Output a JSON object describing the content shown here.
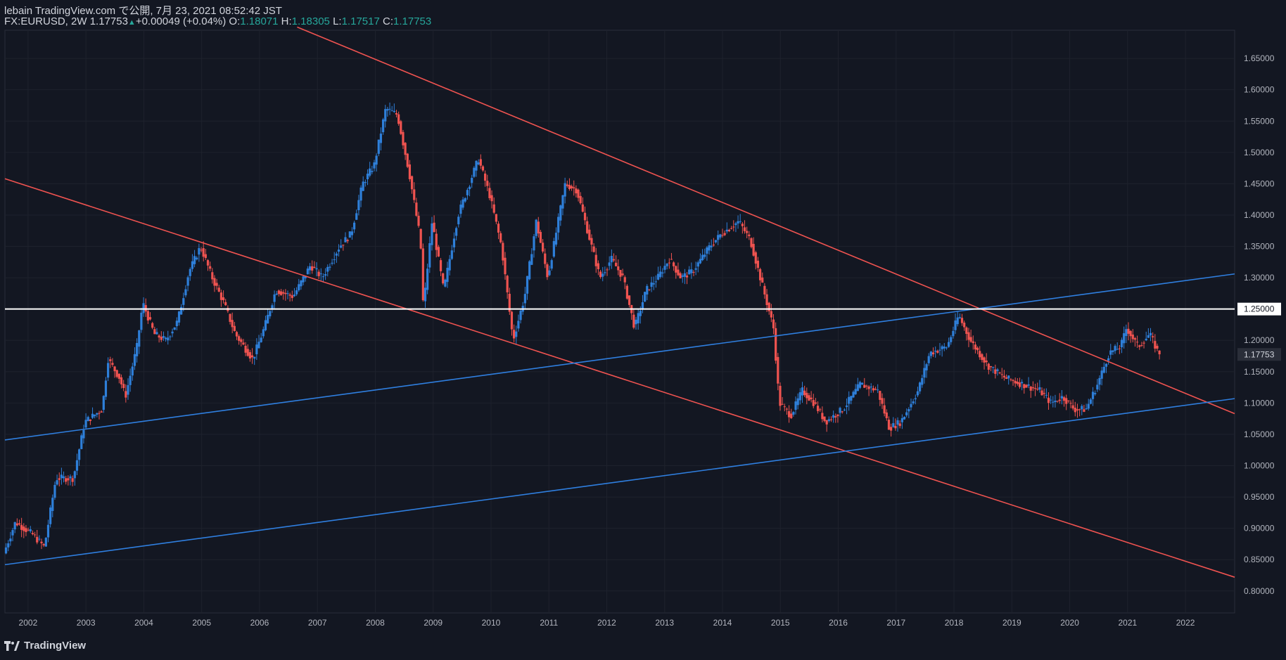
{
  "header": {
    "published": "lebain TradingView.com で公開, 7月 23, 2021 08:52:42 JST",
    "symbol": "FX:EURUSD, 2W",
    "last": "1.17753",
    "change": "+0.00049 (+0.04%)",
    "o_label": "O:",
    "o_value": "1.18071",
    "h_label": "H:",
    "h_value": "1.18305",
    "l_label": "L:",
    "l_value": "1.17517",
    "c_label": "C:",
    "c_value": "1.17753"
  },
  "brand": {
    "name": "TradingView",
    "logo_icon": "tradingview-logo-icon"
  },
  "colors": {
    "background": "#131722",
    "up": "#2e7fd9",
    "down": "#ef5350",
    "trend_red": "#ef5350",
    "trend_blue": "#2f7fe0",
    "hline": "#ffffff",
    "axis_text": "#b2b5be",
    "grid": "#1e222d"
  },
  "chart_data": {
    "type": "candlestick",
    "symbol": "FX:EURUSD",
    "interval": "2W",
    "x_range": [
      2001.6,
      2022.85
    ],
    "y_range": [
      0.765,
      1.695
    ],
    "x_tick_labels": [
      "2002",
      "2003",
      "2004",
      "2005",
      "2006",
      "2007",
      "2008",
      "2009",
      "2010",
      "2011",
      "2012",
      "2013",
      "2014",
      "2015",
      "2016",
      "2017",
      "2018",
      "2019",
      "2020",
      "2021",
      "2022"
    ],
    "x_ticks": [
      2002,
      2003,
      2004,
      2005,
      2006,
      2007,
      2008,
      2009,
      2010,
      2011,
      2012,
      2013,
      2014,
      2015,
      2016,
      2017,
      2018,
      2019,
      2020,
      2021,
      2022
    ],
    "y_tick_labels": [
      "0.80000",
      "0.85000",
      "0.90000",
      "0.95000",
      "1.00000",
      "1.05000",
      "1.10000",
      "1.15000",
      "1.20000",
      "1.25000",
      "1.30000",
      "1.35000",
      "1.40000",
      "1.45000",
      "1.50000",
      "1.55000",
      "1.60000",
      "1.65000"
    ],
    "y_ticks": [
      0.8,
      0.85,
      0.9,
      0.95,
      1.0,
      1.05,
      1.1,
      1.15,
      1.2,
      1.25,
      1.3,
      1.35,
      1.4,
      1.45,
      1.5,
      1.55,
      1.6,
      1.65
    ],
    "price_path": [
      [
        2001.6,
        0.86
      ],
      [
        2001.8,
        0.91
      ],
      [
        2002.1,
        0.89
      ],
      [
        2002.3,
        0.87
      ],
      [
        2002.5,
        0.98
      ],
      [
        2002.8,
        0.98
      ],
      [
        2003.0,
        1.07
      ],
      [
        2003.3,
        1.09
      ],
      [
        2003.4,
        1.17
      ],
      [
        2003.6,
        1.14
      ],
      [
        2003.7,
        1.11
      ],
      [
        2003.9,
        1.19
      ],
      [
        2004.0,
        1.26
      ],
      [
        2004.2,
        1.21
      ],
      [
        2004.4,
        1.2
      ],
      [
        2004.6,
        1.23
      ],
      [
        2004.8,
        1.31
      ],
      [
        2005.0,
        1.35
      ],
      [
        2005.2,
        1.3
      ],
      [
        2005.4,
        1.26
      ],
      [
        2005.6,
        1.21
      ],
      [
        2005.9,
        1.17
      ],
      [
        2006.1,
        1.22
      ],
      [
        2006.3,
        1.28
      ],
      [
        2006.6,
        1.27
      ],
      [
        2006.9,
        1.32
      ],
      [
        2007.1,
        1.3
      ],
      [
        2007.4,
        1.35
      ],
      [
        2007.6,
        1.37
      ],
      [
        2007.8,
        1.45
      ],
      [
        2008.0,
        1.48
      ],
      [
        2008.2,
        1.57
      ],
      [
        2008.4,
        1.56
      ],
      [
        2008.6,
        1.47
      ],
      [
        2008.8,
        1.36
      ],
      [
        2008.85,
        1.25
      ],
      [
        2009.0,
        1.39
      ],
      [
        2009.2,
        1.28
      ],
      [
        2009.45,
        1.4
      ],
      [
        2009.8,
        1.49
      ],
      [
        2010.0,
        1.43
      ],
      [
        2010.2,
        1.35
      ],
      [
        2010.4,
        1.2
      ],
      [
        2010.6,
        1.27
      ],
      [
        2010.8,
        1.39
      ],
      [
        2011.0,
        1.3
      ],
      [
        2011.3,
        1.45
      ],
      [
        2011.5,
        1.44
      ],
      [
        2011.7,
        1.37
      ],
      [
        2011.9,
        1.3
      ],
      [
        2012.1,
        1.33
      ],
      [
        2012.3,
        1.3
      ],
      [
        2012.5,
        1.22
      ],
      [
        2012.7,
        1.28
      ],
      [
        2012.9,
        1.3
      ],
      [
        2013.1,
        1.33
      ],
      [
        2013.3,
        1.3
      ],
      [
        2013.5,
        1.31
      ],
      [
        2013.8,
        1.35
      ],
      [
        2014.0,
        1.37
      ],
      [
        2014.3,
        1.39
      ],
      [
        2014.5,
        1.36
      ],
      [
        2014.7,
        1.29
      ],
      [
        2014.9,
        1.22
      ],
      [
        2015.0,
        1.1
      ],
      [
        2015.2,
        1.08
      ],
      [
        2015.4,
        1.12
      ],
      [
        2015.6,
        1.1
      ],
      [
        2015.8,
        1.07
      ],
      [
        2016.1,
        1.09
      ],
      [
        2016.4,
        1.13
      ],
      [
        2016.7,
        1.12
      ],
      [
        2016.9,
        1.06
      ],
      [
        2017.1,
        1.07
      ],
      [
        2017.4,
        1.12
      ],
      [
        2017.6,
        1.18
      ],
      [
        2017.9,
        1.19
      ],
      [
        2018.1,
        1.24
      ],
      [
        2018.3,
        1.2
      ],
      [
        2018.6,
        1.16
      ],
      [
        2018.9,
        1.14
      ],
      [
        2019.2,
        1.13
      ],
      [
        2019.5,
        1.12
      ],
      [
        2019.7,
        1.1
      ],
      [
        2019.9,
        1.11
      ],
      [
        2020.1,
        1.09
      ],
      [
        2020.3,
        1.09
      ],
      [
        2020.5,
        1.13
      ],
      [
        2020.7,
        1.18
      ],
      [
        2020.9,
        1.19
      ],
      [
        2021.0,
        1.22
      ],
      [
        2021.2,
        1.19
      ],
      [
        2021.4,
        1.21
      ],
      [
        2021.55,
        1.18
      ]
    ],
    "trendlines": [
      {
        "color": "red",
        "from": [
          2006.65,
          1.7
        ],
        "to": [
          2022.85,
          1.083
        ]
      },
      {
        "color": "red",
        "from": [
          2001.6,
          1.458
        ],
        "to": [
          2022.85,
          0.822
        ]
      },
      {
        "color": "blue",
        "from": [
          2001.6,
          1.041
        ],
        "to": [
          2022.85,
          1.306
        ]
      },
      {
        "color": "blue",
        "from": [
          2001.6,
          0.842
        ],
        "to": [
          2022.85,
          1.107
        ]
      }
    ],
    "hline": {
      "price": 1.25,
      "label": "1.25000"
    },
    "last_price": {
      "price": 1.17753,
      "label": "1.17753"
    }
  }
}
